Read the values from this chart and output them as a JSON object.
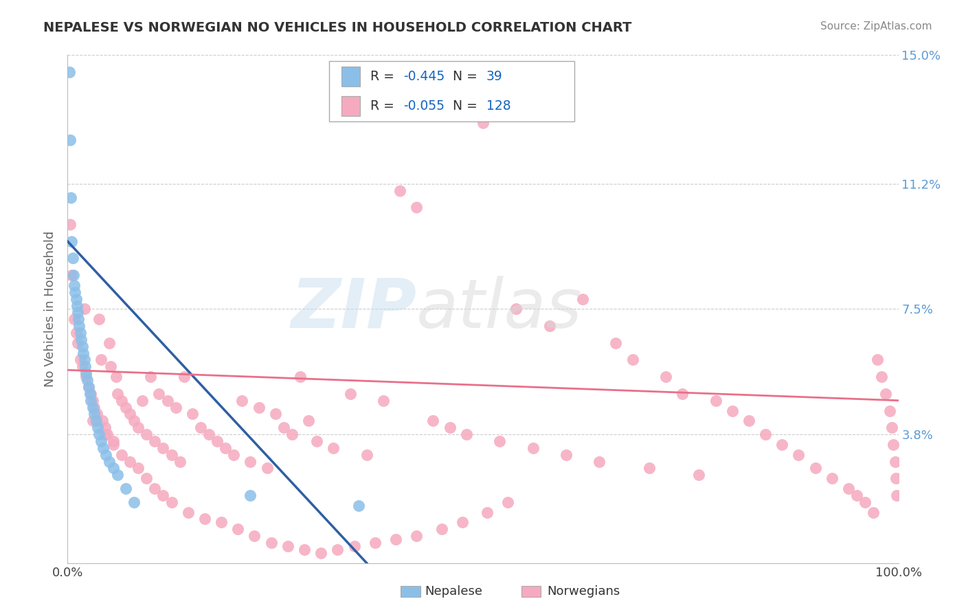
{
  "title": "NEPALESE VS NORWEGIAN NO VEHICLES IN HOUSEHOLD CORRELATION CHART",
  "source": "Source: ZipAtlas.com",
  "ylabel": "No Vehicles in Household",
  "xmin": 0.0,
  "xmax": 1.0,
  "ymin": 0.0,
  "ymax": 0.15,
  "ytick_vals": [
    0.0,
    0.038,
    0.075,
    0.112,
    0.15
  ],
  "ytick_labels": [
    "",
    "3.8%",
    "7.5%",
    "11.2%",
    "15.0%"
  ],
  "xtick_positions": [
    0.0,
    1.0
  ],
  "xtick_labels": [
    "0.0%",
    "100.0%"
  ],
  "legend_r_nepalese": "-0.445",
  "legend_n_nepalese": "39",
  "legend_r_norwegians": "-0.055",
  "legend_n_norwegians": "128",
  "color_nepalese": "#8BBFE8",
  "color_norwegians": "#F5AABF",
  "color_line_nepalese": "#2E5FA3",
  "color_line_norwegians": "#E8708A",
  "watermark_zip": "ZIP",
  "watermark_atlas": "atlas",
  "background_color": "#FFFFFF",
  "grid_color": "#CCCCCC",
  "title_color": "#333333",
  "source_color": "#888888",
  "tick_color_right": "#5B9BD5",
  "legend_text_color": "#333333",
  "legend_value_color": "#1565C0",
  "nepalese_x": [
    0.002,
    0.003,
    0.004,
    0.005,
    0.006,
    0.007,
    0.008,
    0.009,
    0.01,
    0.011,
    0.012,
    0.013,
    0.014,
    0.015,
    0.016,
    0.018,
    0.019,
    0.02,
    0.021,
    0.022,
    0.024,
    0.025,
    0.027,
    0.028,
    0.03,
    0.032,
    0.034,
    0.036,
    0.038,
    0.04,
    0.043,
    0.046,
    0.05,
    0.055,
    0.06,
    0.07,
    0.08,
    0.22,
    0.35
  ],
  "nepalese_y": [
    0.145,
    0.125,
    0.108,
    0.095,
    0.09,
    0.085,
    0.082,
    0.08,
    0.078,
    0.076,
    0.074,
    0.072,
    0.07,
    0.068,
    0.066,
    0.064,
    0.062,
    0.06,
    0.058,
    0.056,
    0.054,
    0.052,
    0.05,
    0.048,
    0.046,
    0.044,
    0.042,
    0.04,
    0.038,
    0.036,
    0.034,
    0.032,
    0.03,
    0.028,
    0.026,
    0.022,
    0.018,
    0.02,
    0.017
  ],
  "norwegians_x": [
    0.003,
    0.005,
    0.008,
    0.01,
    0.012,
    0.015,
    0.018,
    0.02,
    0.022,
    0.025,
    0.028,
    0.03,
    0.032,
    0.035,
    0.038,
    0.04,
    0.042,
    0.045,
    0.048,
    0.05,
    0.052,
    0.055,
    0.058,
    0.06,
    0.065,
    0.07,
    0.075,
    0.08,
    0.085,
    0.09,
    0.095,
    0.1,
    0.105,
    0.11,
    0.115,
    0.12,
    0.125,
    0.13,
    0.135,
    0.14,
    0.15,
    0.16,
    0.17,
    0.18,
    0.19,
    0.2,
    0.21,
    0.22,
    0.23,
    0.24,
    0.25,
    0.26,
    0.27,
    0.28,
    0.29,
    0.3,
    0.32,
    0.34,
    0.36,
    0.38,
    0.4,
    0.42,
    0.44,
    0.46,
    0.48,
    0.5,
    0.52,
    0.54,
    0.56,
    0.58,
    0.6,
    0.62,
    0.64,
    0.66,
    0.68,
    0.7,
    0.72,
    0.74,
    0.76,
    0.78,
    0.8,
    0.82,
    0.84,
    0.86,
    0.88,
    0.9,
    0.92,
    0.94,
    0.95,
    0.96,
    0.97,
    0.975,
    0.98,
    0.985,
    0.99,
    0.992,
    0.994,
    0.996,
    0.997,
    0.998,
    0.03,
    0.045,
    0.055,
    0.065,
    0.075,
    0.085,
    0.095,
    0.105,
    0.115,
    0.125,
    0.145,
    0.165,
    0.185,
    0.205,
    0.225,
    0.245,
    0.265,
    0.285,
    0.305,
    0.325,
    0.345,
    0.37,
    0.395,
    0.42,
    0.45,
    0.475,
    0.505,
    0.53
  ],
  "norwegians_y": [
    0.1,
    0.085,
    0.072,
    0.068,
    0.065,
    0.06,
    0.058,
    0.075,
    0.055,
    0.052,
    0.05,
    0.048,
    0.046,
    0.044,
    0.072,
    0.06,
    0.042,
    0.04,
    0.038,
    0.065,
    0.058,
    0.036,
    0.055,
    0.05,
    0.048,
    0.046,
    0.044,
    0.042,
    0.04,
    0.048,
    0.038,
    0.055,
    0.036,
    0.05,
    0.034,
    0.048,
    0.032,
    0.046,
    0.03,
    0.055,
    0.044,
    0.04,
    0.038,
    0.036,
    0.034,
    0.032,
    0.048,
    0.03,
    0.046,
    0.028,
    0.044,
    0.04,
    0.038,
    0.055,
    0.042,
    0.036,
    0.034,
    0.05,
    0.032,
    0.048,
    0.11,
    0.105,
    0.042,
    0.04,
    0.038,
    0.13,
    0.036,
    0.075,
    0.034,
    0.07,
    0.032,
    0.078,
    0.03,
    0.065,
    0.06,
    0.028,
    0.055,
    0.05,
    0.026,
    0.048,
    0.045,
    0.042,
    0.038,
    0.035,
    0.032,
    0.028,
    0.025,
    0.022,
    0.02,
    0.018,
    0.015,
    0.06,
    0.055,
    0.05,
    0.045,
    0.04,
    0.035,
    0.03,
    0.025,
    0.02,
    0.042,
    0.038,
    0.035,
    0.032,
    0.03,
    0.028,
    0.025,
    0.022,
    0.02,
    0.018,
    0.015,
    0.013,
    0.012,
    0.01,
    0.008,
    0.006,
    0.005,
    0.004,
    0.003,
    0.004,
    0.005,
    0.006,
    0.007,
    0.008,
    0.01,
    0.012,
    0.015,
    0.018
  ],
  "line_nep_x0": 0.0,
  "line_nep_x1": 0.36,
  "line_nep_y0": 0.095,
  "line_nep_y1": 0.0,
  "line_nor_x0": 0.0,
  "line_nor_x1": 1.0,
  "line_nor_y0": 0.057,
  "line_nor_y1": 0.048
}
